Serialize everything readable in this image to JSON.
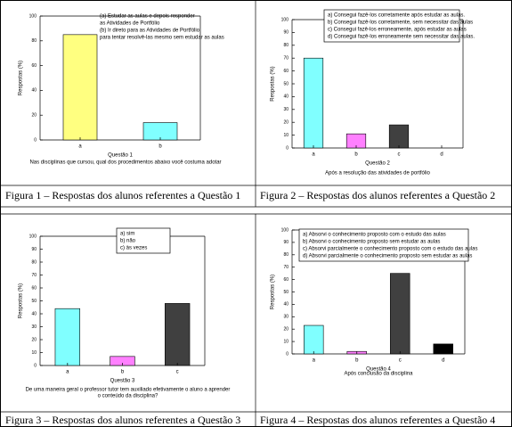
{
  "chart_data": [
    {
      "type": "bar",
      "categories": [
        "a",
        "b"
      ],
      "values": [
        85,
        14
      ],
      "colors": [
        "#ffff80",
        "#80ffff"
      ],
      "ylim": [
        0,
        100
      ],
      "yticks": [
        0,
        20,
        40,
        60,
        80,
        100
      ],
      "ylabel": "Respostas (%)",
      "xlabel": "Questão 1",
      "subtitle": [
        "Nas disciplinas que cursou, qual dos procedimentos abaixo você costuma adotar"
      ],
      "legend_text": [
        "(a) Estudar as aulas e depois responder",
        "as Atividades de Portfólio",
        "(b) Ir direto para as Atividades de Portfólio",
        "para tentar resolvê-las mesmo sem estudar as aulas"
      ],
      "caption": "Figura 1 – Respostas dos alunos referentes a Questão 1"
    },
    {
      "type": "bar",
      "categories": [
        "a",
        "b",
        "c",
        "d"
      ],
      "values": [
        70,
        11,
        18,
        0
      ],
      "colors": [
        "#80ffff",
        "#ff80ff",
        "#404040",
        "#000000"
      ],
      "ylim": [
        0,
        100
      ],
      "yticks": [
        0,
        10,
        20,
        30,
        40,
        50,
        60,
        70,
        80,
        90,
        100
      ],
      "ylabel": "Respostas (%)",
      "xlabel": "Questão 2",
      "subtitle": [
        "Após a resolução das atividades de portfólio"
      ],
      "legend_text": [
        "a)  Consegui fazê-los corretamente após estudar as aulas.",
        "b)  Consegui fazê-los corretamente, sem necessitar das aulas",
        "c)  Consegui fazê-los erroneamente, após estudar as aulas",
        "d)  Consegui fazê-los erroneamente sem necessitar das aulas."
      ],
      "caption": "Figura 2 – Respostas dos alunos referentes a Questão 2"
    },
    {
      "type": "bar",
      "categories": [
        "a",
        "b",
        "c"
      ],
      "values": [
        44,
        7,
        48
      ],
      "colors": [
        "#80ffff",
        "#ff80ff",
        "#404040"
      ],
      "ylim": [
        0,
        100
      ],
      "yticks": [
        0,
        10,
        20,
        30,
        40,
        50,
        60,
        70,
        80,
        90,
        100
      ],
      "ylabel": "Respostas (%)",
      "xlabel": "Questão 3",
      "subtitle": [
        "De uma maneira geral o professor tutor tem auxiliado efetivamente o aluno a aprender",
        "o conteúdo da disciplina?"
      ],
      "legend_text": [
        "a) sim",
        "b) não",
        "c) às vezes"
      ],
      "caption": "Figura 3 – Respostas dos alunos referentes a Questão 3"
    },
    {
      "type": "bar",
      "categories": [
        "a",
        "b",
        "c",
        "d"
      ],
      "values": [
        23,
        2,
        65,
        8
      ],
      "colors": [
        "#80ffff",
        "#ff80ff",
        "#404040",
        "#000000"
      ],
      "ylim": [
        0,
        100
      ],
      "yticks": [
        0,
        10,
        20,
        30,
        40,
        50,
        60,
        70,
        80,
        90,
        100
      ],
      "ylabel": "Respostas (%)",
      "xlabel": "Questão 4",
      "subtitle": [
        "Após conclusão da disciplina"
      ],
      "legend_text": [
        "a) Absorvi o conhecimento proposto com o estudo das aulas",
        "b) Absorvi o conhecimento proposto sem estudar as aulas",
        "c) Absorvi parcialmente o conhecimento proposto com o estudo das aulas",
        "d) Absorvi parcialmente o conhecimento proposto sem estudar as aulas"
      ],
      "caption": "Figura 4 – Respostas dos alunos referentes a Questão 4"
    }
  ]
}
